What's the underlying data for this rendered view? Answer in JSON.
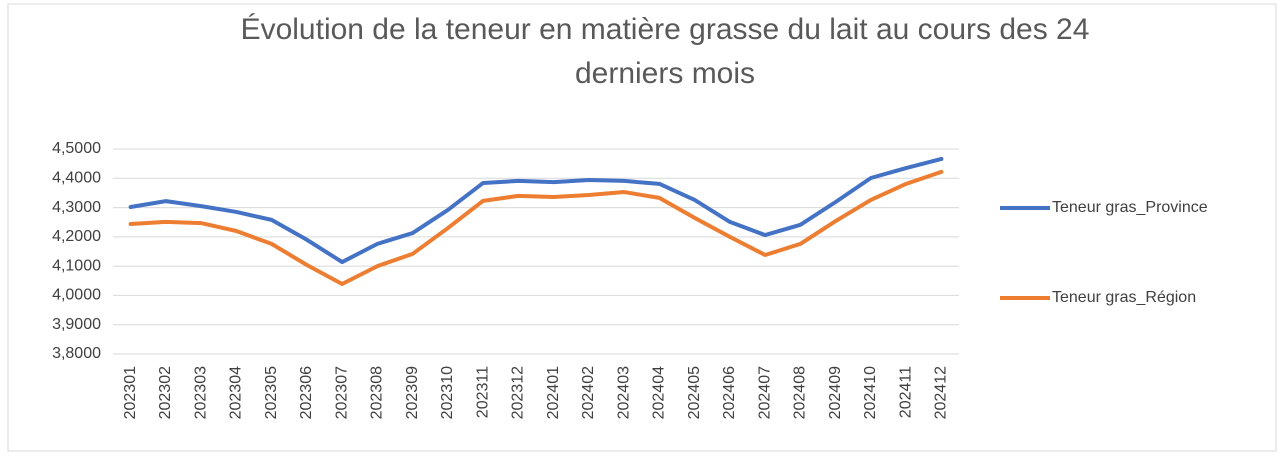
{
  "chart_data": {
    "type": "line",
    "title": "Évolution de la teneur en matière grasse du lait au cours des 24 derniers mois",
    "categories": [
      "202301",
      "202302",
      "202303",
      "202304",
      "202305",
      "202306",
      "202307",
      "202308",
      "202309",
      "202310",
      "202311",
      "202312",
      "202401",
      "202402",
      "202403",
      "202404",
      "202405",
      "202406",
      "202407",
      "202408",
      "202409",
      "202410",
      "202411",
      "202412"
    ],
    "series": [
      {
        "name": "Teneur gras_Province",
        "color": "#4472c4",
        "values": [
          4.302,
          4.322,
          4.305,
          4.285,
          4.258,
          4.19,
          4.114,
          4.176,
          4.213,
          4.292,
          4.384,
          4.391,
          4.387,
          4.394,
          4.391,
          4.381,
          4.326,
          4.251,
          4.206,
          4.241,
          4.319,
          4.401,
          4.435,
          4.466
        ]
      },
      {
        "name": "Teneur gras_Région",
        "color": "#ed7d31",
        "values": [
          4.244,
          4.251,
          4.247,
          4.22,
          4.176,
          4.104,
          4.039,
          4.1,
          4.142,
          4.23,
          4.323,
          4.34,
          4.336,
          4.343,
          4.353,
          4.333,
          4.265,
          4.2,
          4.138,
          4.176,
          4.254,
          4.326,
          4.381,
          4.422
        ]
      }
    ],
    "ylim": [
      3.8,
      4.5
    ],
    "yticks": [
      {
        "value": 3.8,
        "label": "3,8000"
      },
      {
        "value": 3.9,
        "label": "3,9000"
      },
      {
        "value": 4.0,
        "label": "4,0000"
      },
      {
        "value": 4.1,
        "label": "4,1000"
      },
      {
        "value": 4.2,
        "label": "4,2000"
      },
      {
        "value": 4.3,
        "label": "4,3000"
      },
      {
        "value": 4.4,
        "label": "4,4000"
      },
      {
        "value": 4.5,
        "label": "4,5000"
      }
    ],
    "grid": true,
    "legend": "right"
  }
}
